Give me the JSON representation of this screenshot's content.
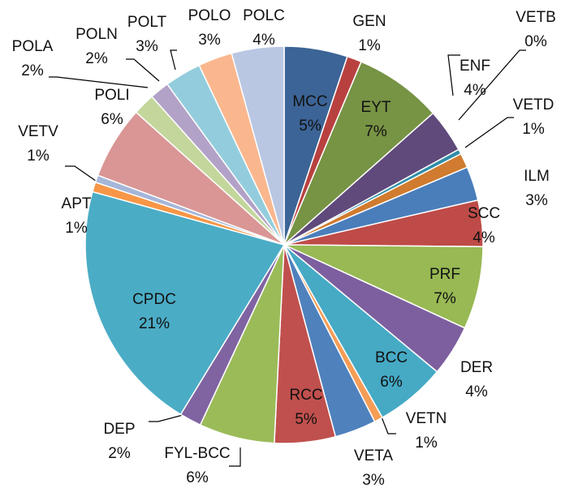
{
  "chart_data": {
    "type": "pie",
    "categories": [
      "MCC",
      "GEN",
      "EYT",
      "ENF",
      "VETB",
      "VETD",
      "ILM",
      "SCC",
      "PRF",
      "DER",
      "BCC",
      "VETN",
      "VETA",
      "RCC",
      "FYL-BCC",
      "DEP",
      "CPDC",
      "APT",
      "VETV",
      "POLI",
      "POLA",
      "POLN",
      "POLT",
      "POLO",
      "POLC"
    ],
    "values": [
      5.2,
      1.2,
      7.2,
      3.6,
      0.4,
      1.2,
      2.8,
      3.8,
      6.8,
      4.2,
      5.8,
      0.7,
      3.4,
      5.0,
      6.2,
      1.8,
      20.8,
      0.8,
      0.6,
      6.0,
      1.8,
      1.6,
      3.0,
      2.8,
      4.3
    ],
    "value_labels": [
      "5%",
      "1%",
      "7%",
      "4%",
      "0%",
      "1%",
      "3%",
      "4%",
      "7%",
      "4%",
      "6%",
      "1%",
      "3%",
      "5%",
      "6%",
      "2%",
      "21%",
      "1%",
      "1%",
      "6%",
      "2%",
      "2%",
      "3%",
      "3%",
      "4%"
    ],
    "colors": [
      "#3c6496",
      "#b84140",
      "#779344",
      "#5f4a7b",
      "#2f8ea8",
      "#d07b2f",
      "#4a7ebb",
      "#be4b48",
      "#98b954",
      "#7d5f9f",
      "#46aac5",
      "#f59d56",
      "#4f81bd",
      "#c0504d",
      "#9bbb59",
      "#8064a2",
      "#4bacc6",
      "#f79646",
      "#a5b6d9",
      "#d99694",
      "#c3d69b",
      "#b3a2c7",
      "#93cddd",
      "#fab78e",
      "#b9c7e3"
    ]
  }
}
